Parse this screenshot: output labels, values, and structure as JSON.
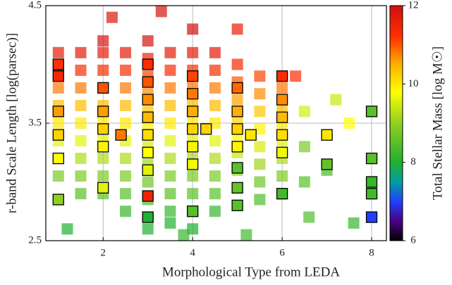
{
  "chart_data": {
    "type": "scatter",
    "xlabel": "Morphological Type from LEDA",
    "ylabel": "r-band Scale Length [log(parsec)]",
    "colorbar_label": "Total Stellar Mass [log M☉]",
    "xlim": [
      0.72,
      8.33
    ],
    "xticks": [
      2,
      4,
      6,
      8
    ],
    "ylim": [
      2.5,
      4.5
    ],
    "yticks": [
      2.5,
      3.5,
      4.5
    ],
    "clim": [
      6,
      12
    ],
    "cticks": [
      6,
      8,
      10,
      12
    ],
    "grid": true,
    "points": [
      [
        1,
        4.1,
        11.7
      ],
      [
        1,
        3.95,
        11.3
      ],
      [
        1,
        3.8,
        10.8
      ],
      [
        1,
        3.65,
        10.4
      ],
      [
        1,
        3.5,
        10
      ],
      [
        1,
        3.35,
        9.6
      ],
      [
        1,
        3.2,
        9.2
      ],
      [
        1,
        3.05,
        8.8
      ],
      [
        1.5,
        4.1,
        11.7
      ],
      [
        1.5,
        3.95,
        11.3
      ],
      [
        1.5,
        3.8,
        10.8
      ],
      [
        1.5,
        3.65,
        10.4
      ],
      [
        1.5,
        3.5,
        10
      ],
      [
        1.5,
        3.35,
        9.6
      ],
      [
        1.5,
        3.2,
        9.2
      ],
      [
        1.5,
        3.05,
        8.8
      ],
      [
        1.5,
        2.9,
        8.5
      ],
      [
        2,
        4.2,
        11.9
      ],
      [
        2,
        4.1,
        11.7
      ],
      [
        2,
        3.95,
        11.3
      ],
      [
        2,
        3.8,
        10.8
      ],
      [
        2,
        3.65,
        10.4
      ],
      [
        2,
        3.5,
        10
      ],
      [
        2,
        3.35,
        9.6
      ],
      [
        2,
        3.2,
        9.2
      ],
      [
        2,
        3.05,
        8.8
      ],
      [
        2,
        2.9,
        8.5
      ],
      [
        2.5,
        4.1,
        11.7
      ],
      [
        2.5,
        3.95,
        11.3
      ],
      [
        2.5,
        3.8,
        10.8
      ],
      [
        2.5,
        3.65,
        10.4
      ],
      [
        2.5,
        3.5,
        10
      ],
      [
        2.5,
        3.35,
        9.6
      ],
      [
        2.5,
        3.2,
        9.2
      ],
      [
        2.5,
        3.05,
        8.8
      ],
      [
        2.5,
        2.9,
        8.5
      ],
      [
        2.5,
        2.75,
        8.2
      ],
      [
        3,
        4.2,
        11.9
      ],
      [
        3,
        4.05,
        11.5
      ],
      [
        3,
        3.9,
        11.1
      ],
      [
        3,
        3.75,
        10.7
      ],
      [
        3,
        3.6,
        10.3
      ],
      [
        3,
        3.45,
        9.9
      ],
      [
        3,
        3.3,
        9.5
      ],
      [
        3,
        3.15,
        9.1
      ],
      [
        3,
        3.0,
        8.7
      ],
      [
        3,
        2.85,
        8.4
      ],
      [
        3,
        2.7,
        8.1
      ],
      [
        3,
        2.6,
        8
      ],
      [
        3.5,
        4.1,
        11.7
      ],
      [
        3.5,
        3.95,
        11.3
      ],
      [
        3.5,
        3.8,
        10.8
      ],
      [
        3.5,
        3.65,
        10.4
      ],
      [
        3.5,
        3.5,
        10
      ],
      [
        3.5,
        3.35,
        9.6
      ],
      [
        3.5,
        3.2,
        9.2
      ],
      [
        3.5,
        3.05,
        8.8
      ],
      [
        3.5,
        2.9,
        8.5
      ],
      [
        3.5,
        2.75,
        8.2
      ],
      [
        3.5,
        2.65,
        8
      ],
      [
        4,
        4.1,
        11.7
      ],
      [
        4,
        3.95,
        11.3
      ],
      [
        4,
        3.8,
        10.8
      ],
      [
        4,
        3.65,
        10.4
      ],
      [
        4,
        3.5,
        10
      ],
      [
        4,
        3.35,
        9.6
      ],
      [
        4,
        3.2,
        9.2
      ],
      [
        4,
        3.05,
        8.8
      ],
      [
        4,
        2.9,
        8.5
      ],
      [
        4,
        2.75,
        8.2
      ],
      [
        4,
        2.6,
        8
      ],
      [
        4,
        4.3,
        12
      ],
      [
        4.5,
        4.1,
        11.7
      ],
      [
        4.5,
        3.95,
        11.3
      ],
      [
        4.5,
        3.8,
        10.8
      ],
      [
        4.5,
        3.65,
        10.4
      ],
      [
        4.5,
        3.5,
        10
      ],
      [
        4.5,
        3.35,
        9.6
      ],
      [
        4.5,
        3.2,
        9.2
      ],
      [
        4.5,
        3.05,
        8.8
      ],
      [
        4.5,
        2.9,
        8.5
      ],
      [
        4.5,
        2.75,
        8.2
      ],
      [
        5,
        4.0,
        11.4
      ],
      [
        5,
        3.85,
        11
      ],
      [
        5,
        3.7,
        10.6
      ],
      [
        5,
        3.55,
        10.2
      ],
      [
        5,
        3.4,
        9.8
      ],
      [
        5,
        3.25,
        9.4
      ],
      [
        5,
        3.1,
        9
      ],
      [
        5,
        2.95,
        8.6
      ],
      [
        5,
        2.8,
        8.3
      ],
      [
        5.5,
        3.9,
        11.1
      ],
      [
        5.5,
        3.75,
        10.7
      ],
      [
        5.5,
        3.6,
        10.3
      ],
      [
        5.5,
        3.45,
        9.9
      ],
      [
        5.5,
        3.3,
        9.5
      ],
      [
        5.5,
        3.15,
        9.1
      ],
      [
        5.5,
        3.0,
        8.7
      ],
      [
        5.5,
        2.85,
        8.4
      ],
      [
        6,
        3.8,
        10.8
      ],
      [
        6,
        3.65,
        10.4
      ],
      [
        6,
        3.5,
        10
      ],
      [
        6,
        3.35,
        9.6
      ],
      [
        6,
        3.2,
        9.2
      ],
      [
        6,
        3.05,
        8.8
      ],
      [
        6,
        2.9,
        8.5
      ],
      [
        6.5,
        3.6,
        9.5
      ],
      [
        6.5,
        3.3,
        8.8
      ],
      [
        6.5,
        3.0,
        8.5
      ],
      [
        7,
        3.4,
        8.8
      ],
      [
        7,
        3.1,
        8.3
      ],
      [
        2.2,
        4.4,
        11.8
      ],
      [
        3.3,
        4.45,
        11.9
      ],
      [
        5,
        4.3,
        11.6
      ],
      [
        6.3,
        3.9,
        11.3
      ],
      [
        7.2,
        3.7,
        9.4
      ],
      [
        7.5,
        3.5,
        9.8
      ],
      [
        5.2,
        2.55,
        8.3
      ],
      [
        3.8,
        2.55,
        8.2
      ],
      [
        1.2,
        2.6,
        8
      ],
      [
        6.6,
        2.7,
        8.4
      ],
      [
        7.6,
        2.65,
        8.2
      ]
    ],
    "highlighted": [
      [
        1,
        4.0,
        11.2
      ],
      [
        1,
        3.9,
        11.4
      ],
      [
        1,
        3.6,
        10.6
      ],
      [
        1,
        3.4,
        10.2
      ],
      [
        1,
        3.2,
        9.8
      ],
      [
        1,
        2.85,
        9
      ],
      [
        2,
        3.8,
        11
      ],
      [
        2,
        3.6,
        10.6
      ],
      [
        2,
        3.45,
        10.2
      ],
      [
        2,
        3.3,
        9.9
      ],
      [
        2,
        2.95,
        9.6
      ],
      [
        2.4,
        3.4,
        10.8
      ],
      [
        3,
        4.0,
        11.3
      ],
      [
        3,
        3.85,
        11
      ],
      [
        3,
        3.7,
        10.7
      ],
      [
        3,
        3.55,
        10.4
      ],
      [
        3,
        3.4,
        10.1
      ],
      [
        3,
        3.25,
        9.8
      ],
      [
        3,
        3.1,
        9.6
      ],
      [
        3,
        2.88,
        11.5
      ],
      [
        3,
        2.7,
        8
      ],
      [
        4,
        3.9,
        11.1
      ],
      [
        4,
        3.75,
        10.8
      ],
      [
        4,
        3.6,
        10.5
      ],
      [
        4,
        3.45,
        10.2
      ],
      [
        4,
        3.3,
        9.9
      ],
      [
        4,
        3.15,
        9.7
      ],
      [
        4,
        2.75,
        8.5
      ],
      [
        4.3,
        3.45,
        10.2
      ],
      [
        5,
        3.8,
        10.9
      ],
      [
        5,
        3.6,
        10.5
      ],
      [
        5,
        3.45,
        10.2
      ],
      [
        5,
        3.3,
        9.9
      ],
      [
        5,
        3.12,
        8.5
      ],
      [
        5,
        2.95,
        8.6
      ],
      [
        5,
        2.8,
        8.5
      ],
      [
        5.3,
        3.4,
        10
      ],
      [
        6,
        3.9,
        11.3
      ],
      [
        6,
        3.7,
        10.7
      ],
      [
        6,
        3.55,
        10.4
      ],
      [
        6,
        3.4,
        10.1
      ],
      [
        6,
        3.25,
        9.7
      ],
      [
        6,
        2.9,
        8.3
      ],
      [
        7,
        3.4,
        10
      ],
      [
        7,
        3.15,
        8.6
      ],
      [
        8,
        3.6,
        8.5
      ],
      [
        8,
        3.2,
        8.5
      ],
      [
        8,
        3.0,
        8.2
      ],
      [
        8,
        2.9,
        8.3
      ],
      [
        8,
        2.7,
        7
      ]
    ]
  }
}
